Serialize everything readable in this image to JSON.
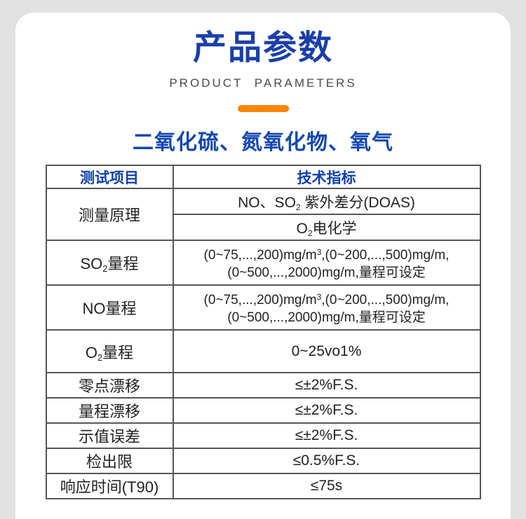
{
  "page": {
    "title": "产品参数",
    "subtitle": "PRODUCT PARAMETERS",
    "section_heading": "二氧化硫、氮氧化物、氧气"
  },
  "colors": {
    "page_background": "#e1e1e1",
    "card_background": "#ffffff",
    "title_blue": "#1a3fa8",
    "heading_blue": "#1547b0",
    "accent_orange": "#ff8400",
    "table_border_gray": "#565656"
  },
  "table": {
    "headers": {
      "item": "测试项目",
      "spec": "技术指标"
    },
    "principle": {
      "label": "测量原理",
      "line1_pre": "NO、SO",
      "line1_sub": "2",
      "line1_post": " 紫外差分(DOAS)",
      "line2_pre": "O",
      "line2_sub": "2",
      "line2_post": "电化学"
    },
    "so2_range": {
      "label_pre": "SO",
      "label_sub": "2",
      "label_post": "量程",
      "value1_pre": "(0~75,...,200)mg/m",
      "value1_sup": "3",
      "value1_post": ",(0~200,...,500)mg/m,",
      "value2": "(0~500,...,2000)mg/m,量程可设定"
    },
    "no_range": {
      "label": "NO量程",
      "value1_pre": "(0~75,...,200)mg/m",
      "value1_sup": "3",
      "value1_post": ",(0~200,...,500)mg/m,",
      "value2": "(0~500,...,2000)mg/m,量程可设定"
    },
    "o2_range": {
      "label_pre": "O",
      "label_sub": "2",
      "label_post": "量程",
      "value": "0~25vo1%"
    },
    "simple_rows": [
      {
        "label": "零点漂移",
        "value": "≤±2%F.S."
      },
      {
        "label": "量程漂移",
        "value": "≤±2%F.S."
      },
      {
        "label": "示值误差",
        "value": "≤±2%F.S."
      },
      {
        "label": "检出限",
        "value": "≤0.5%F.S."
      },
      {
        "label": "响应时间(T90)",
        "value": "≤75s"
      }
    ]
  }
}
